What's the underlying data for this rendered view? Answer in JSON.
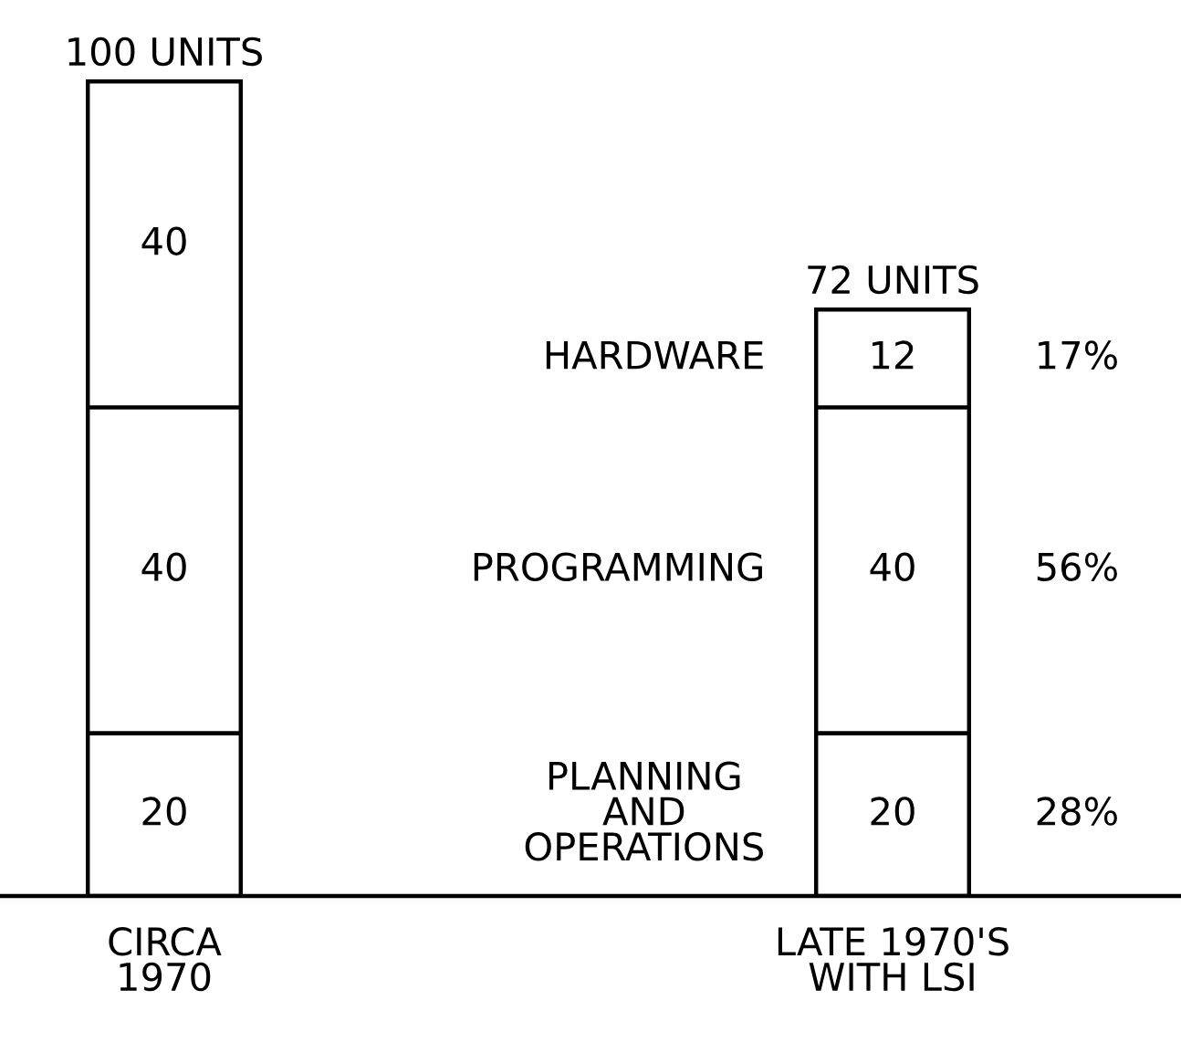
{
  "chart_data": {
    "type": "bar",
    "stacked": true,
    "data_labels": true,
    "categories": [
      "CIRCA\n1970",
      "LATE 1970'S\nWITH LSI"
    ],
    "series": [
      {
        "name": "PLANNING\nAND\nOPERATIONS",
        "color": "#ffffff",
        "values": [
          20,
          20
        ]
      },
      {
        "name": "PROGRAMMING",
        "color": "#ffffff",
        "values": [
          40,
          40
        ]
      },
      {
        "name": "HARDWARE",
        "color": "#ffffff",
        "values": [
          40,
          12
        ]
      }
    ],
    "totals": [
      "100 UNITS",
      "72 UNITS"
    ],
    "annotations": [
      "17%",
      "56%",
      "28%"
    ]
  }
}
